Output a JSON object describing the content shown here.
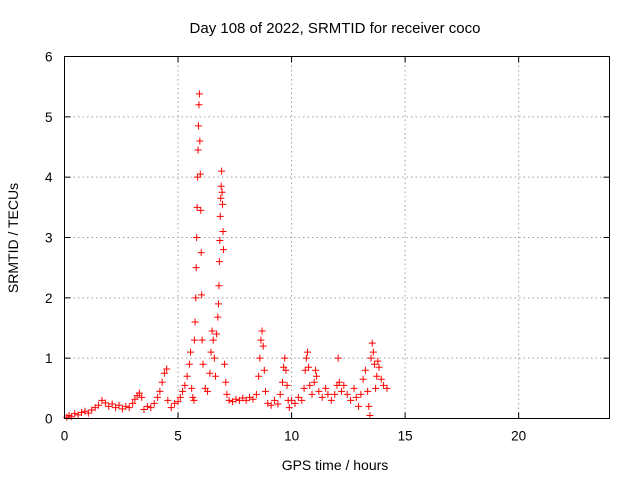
{
  "chart_data": {
    "type": "scatter",
    "title": "Day 108 of 2022, SRMTID for receiver coco",
    "xlabel": "GPS time / hours",
    "ylabel": "SRMTID / TECUs",
    "xlim": [
      0,
      24
    ],
    "ylim": [
      0,
      6
    ],
    "xticks": [
      0,
      5,
      10,
      15,
      20
    ],
    "yticks": [
      0,
      1,
      2,
      3,
      4,
      5,
      6
    ],
    "x_tick_labels": [
      "0",
      "5",
      "10",
      "15",
      "20"
    ],
    "y_tick_labels": [
      "0",
      "1",
      "2",
      "3",
      "4",
      "5",
      "6"
    ],
    "grid": true,
    "marker": "+",
    "color": "#ff0000",
    "series": [
      {
        "name": "SRMTID",
        "points": [
          [
            0.1,
            0.02
          ],
          [
            0.2,
            0.05
          ],
          [
            0.3,
            0.03
          ],
          [
            0.45,
            0.08
          ],
          [
            0.6,
            0.06
          ],
          [
            0.75,
            0.1
          ],
          [
            0.9,
            0.12
          ],
          [
            1.05,
            0.09
          ],
          [
            1.2,
            0.14
          ],
          [
            1.35,
            0.18
          ],
          [
            1.5,
            0.22
          ],
          [
            1.65,
            0.3
          ],
          [
            1.8,
            0.26
          ],
          [
            1.95,
            0.2
          ],
          [
            2.1,
            0.24
          ],
          [
            2.25,
            0.18
          ],
          [
            2.4,
            0.22
          ],
          [
            2.55,
            0.16
          ],
          [
            2.7,
            0.2
          ],
          [
            2.85,
            0.18
          ],
          [
            3.0,
            0.25
          ],
          [
            3.1,
            0.32
          ],
          [
            3.2,
            0.38
          ],
          [
            3.3,
            0.42
          ],
          [
            3.4,
            0.35
          ],
          [
            3.5,
            0.15
          ],
          [
            3.65,
            0.2
          ],
          [
            3.8,
            0.18
          ],
          [
            3.95,
            0.25
          ],
          [
            4.1,
            0.35
          ],
          [
            4.2,
            0.45
          ],
          [
            4.3,
            0.6
          ],
          [
            4.4,
            0.75
          ],
          [
            4.5,
            0.82
          ],
          [
            4.55,
            0.3
          ],
          [
            4.7,
            0.18
          ],
          [
            4.85,
            0.25
          ],
          [
            5.0,
            0.28
          ],
          [
            5.1,
            0.35
          ],
          [
            5.2,
            0.45
          ],
          [
            5.3,
            0.55
          ],
          [
            5.4,
            0.7
          ],
          [
            5.5,
            0.9
          ],
          [
            5.55,
            1.1
          ],
          [
            5.6,
            0.5
          ],
          [
            5.65,
            0.35
          ],
          [
            5.7,
            0.3
          ],
          [
            5.72,
            1.3
          ],
          [
            5.75,
            1.6
          ],
          [
            5.78,
            2.0
          ],
          [
            5.8,
            2.5
          ],
          [
            5.82,
            3.0
          ],
          [
            5.84,
            3.5
          ],
          [
            5.86,
            4.0
          ],
          [
            5.88,
            4.45
          ],
          [
            5.9,
            4.85
          ],
          [
            5.92,
            5.2
          ],
          [
            5.94,
            5.38
          ],
          [
            5.96,
            4.6
          ],
          [
            5.98,
            4.05
          ],
          [
            6.0,
            3.45
          ],
          [
            6.02,
            2.75
          ],
          [
            6.04,
            2.05
          ],
          [
            6.06,
            1.3
          ],
          [
            6.1,
            0.9
          ],
          [
            6.2,
            0.5
          ],
          [
            6.3,
            0.45
          ],
          [
            6.4,
            0.75
          ],
          [
            6.45,
            1.1
          ],
          [
            6.5,
            1.45
          ],
          [
            6.55,
            1.3
          ],
          [
            6.6,
            1.0
          ],
          [
            6.65,
            0.7
          ],
          [
            6.7,
            1.4
          ],
          [
            6.75,
            1.68
          ],
          [
            6.78,
            1.9
          ],
          [
            6.8,
            2.2
          ],
          [
            6.82,
            2.6
          ],
          [
            6.84,
            2.95
          ],
          [
            6.86,
            3.35
          ],
          [
            6.88,
            3.65
          ],
          [
            6.9,
            3.85
          ],
          [
            6.92,
            4.1
          ],
          [
            6.94,
            3.75
          ],
          [
            6.96,
            3.55
          ],
          [
            6.98,
            3.1
          ],
          [
            7.0,
            2.8
          ],
          [
            7.05,
            0.9
          ],
          [
            7.1,
            0.6
          ],
          [
            7.15,
            0.4
          ],
          [
            7.25,
            0.3
          ],
          [
            7.4,
            0.28
          ],
          [
            7.55,
            0.32
          ],
          [
            7.7,
            0.3
          ],
          [
            7.85,
            0.34
          ],
          [
            8.0,
            0.3
          ],
          [
            8.15,
            0.35
          ],
          [
            8.3,
            0.32
          ],
          [
            8.45,
            0.4
          ],
          [
            8.55,
            0.7
          ],
          [
            8.6,
            1.0
          ],
          [
            8.65,
            1.3
          ],
          [
            8.7,
            1.45
          ],
          [
            8.75,
            1.2
          ],
          [
            8.8,
            0.8
          ],
          [
            8.85,
            0.45
          ],
          [
            8.95,
            0.25
          ],
          [
            9.1,
            0.22
          ],
          [
            9.25,
            0.3
          ],
          [
            9.4,
            0.24
          ],
          [
            9.5,
            0.4
          ],
          [
            9.6,
            0.6
          ],
          [
            9.65,
            0.85
          ],
          [
            9.7,
            1.0
          ],
          [
            9.75,
            0.8
          ],
          [
            9.8,
            0.55
          ],
          [
            9.85,
            0.3
          ],
          [
            9.9,
            0.18
          ],
          [
            10.0,
            0.3
          ],
          [
            10.15,
            0.25
          ],
          [
            10.3,
            0.35
          ],
          [
            10.45,
            0.3
          ],
          [
            10.55,
            0.5
          ],
          [
            10.6,
            0.8
          ],
          [
            10.65,
            1.0
          ],
          [
            10.7,
            1.1
          ],
          [
            10.75,
            0.85
          ],
          [
            10.8,
            0.55
          ],
          [
            10.9,
            0.4
          ],
          [
            11.0,
            0.6
          ],
          [
            11.05,
            0.8
          ],
          [
            11.1,
            0.7
          ],
          [
            11.2,
            0.45
          ],
          [
            11.35,
            0.35
          ],
          [
            11.5,
            0.5
          ],
          [
            11.6,
            0.4
          ],
          [
            11.75,
            0.3
          ],
          [
            11.9,
            0.4
          ],
          [
            12.0,
            0.55
          ],
          [
            12.05,
            1.0
          ],
          [
            12.1,
            0.6
          ],
          [
            12.2,
            0.45
          ],
          [
            12.3,
            0.55
          ],
          [
            12.45,
            0.4
          ],
          [
            12.6,
            0.3
          ],
          [
            12.75,
            0.5
          ],
          [
            12.85,
            0.35
          ],
          [
            12.95,
            0.2
          ],
          [
            13.05,
            0.4
          ],
          [
            13.15,
            0.65
          ],
          [
            13.25,
            0.8
          ],
          [
            13.35,
            0.45
          ],
          [
            13.4,
            0.2
          ],
          [
            13.45,
            0.05
          ],
          [
            13.5,
            1.0
          ],
          [
            13.55,
            1.25
          ],
          [
            13.6,
            1.1
          ],
          [
            13.65,
            0.9
          ],
          [
            13.7,
            0.5
          ],
          [
            13.75,
            0.7
          ],
          [
            13.8,
            0.95
          ],
          [
            13.85,
            0.85
          ],
          [
            13.95,
            0.65
          ],
          [
            14.05,
            0.55
          ],
          [
            14.2,
            0.5
          ]
        ]
      }
    ]
  }
}
